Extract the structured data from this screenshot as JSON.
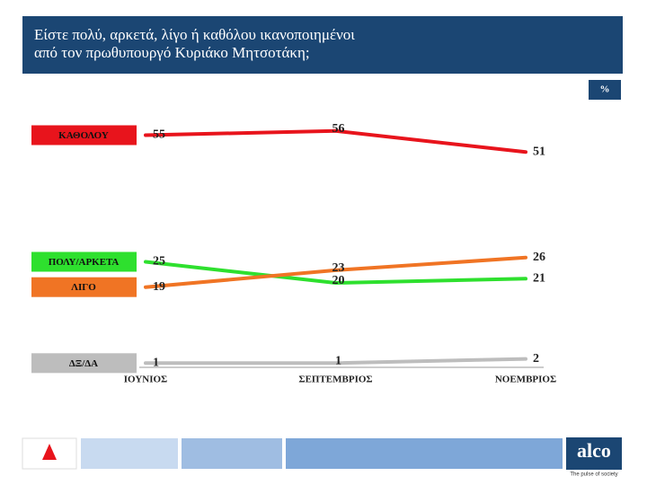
{
  "header": {
    "title_lines": [
      "Είστε πολύ, αρκετά, λίγο ή καθόλου ικανοποιημένοι",
      "από τον πρωθυπουργό Κυριάκο Μητσοτάκη;"
    ],
    "unit_badge": "%"
  },
  "chart_data": {
    "type": "line",
    "categories": [
      "ΙΟΥΝΙΟΣ",
      "ΣΕΠΤΕΜΒΡΙΟΣ",
      "ΝΟΕΜΒΡΙΟΣ"
    ],
    "series": [
      {
        "name": "ΚΑΘΟΛΟΥ",
        "color": "#e8141c",
        "values": [
          55,
          56,
          51
        ]
      },
      {
        "name": "ΠΟΛΥ/ΑΡΚΕΤΑ",
        "color": "#2ee02e",
        "values": [
          25,
          20,
          21
        ]
      },
      {
        "name": "ΛΙΓΟ",
        "color": "#f07424",
        "values": [
          19,
          23,
          26
        ]
      },
      {
        "name": "ΔΞ/ΔΑ",
        "color": "#bdbdbd",
        "values": [
          1,
          1,
          2
        ]
      }
    ],
    "ylim": [
      0,
      60
    ]
  },
  "footer": {
    "logo": "alco",
    "tagline": "The pulse of society"
  }
}
